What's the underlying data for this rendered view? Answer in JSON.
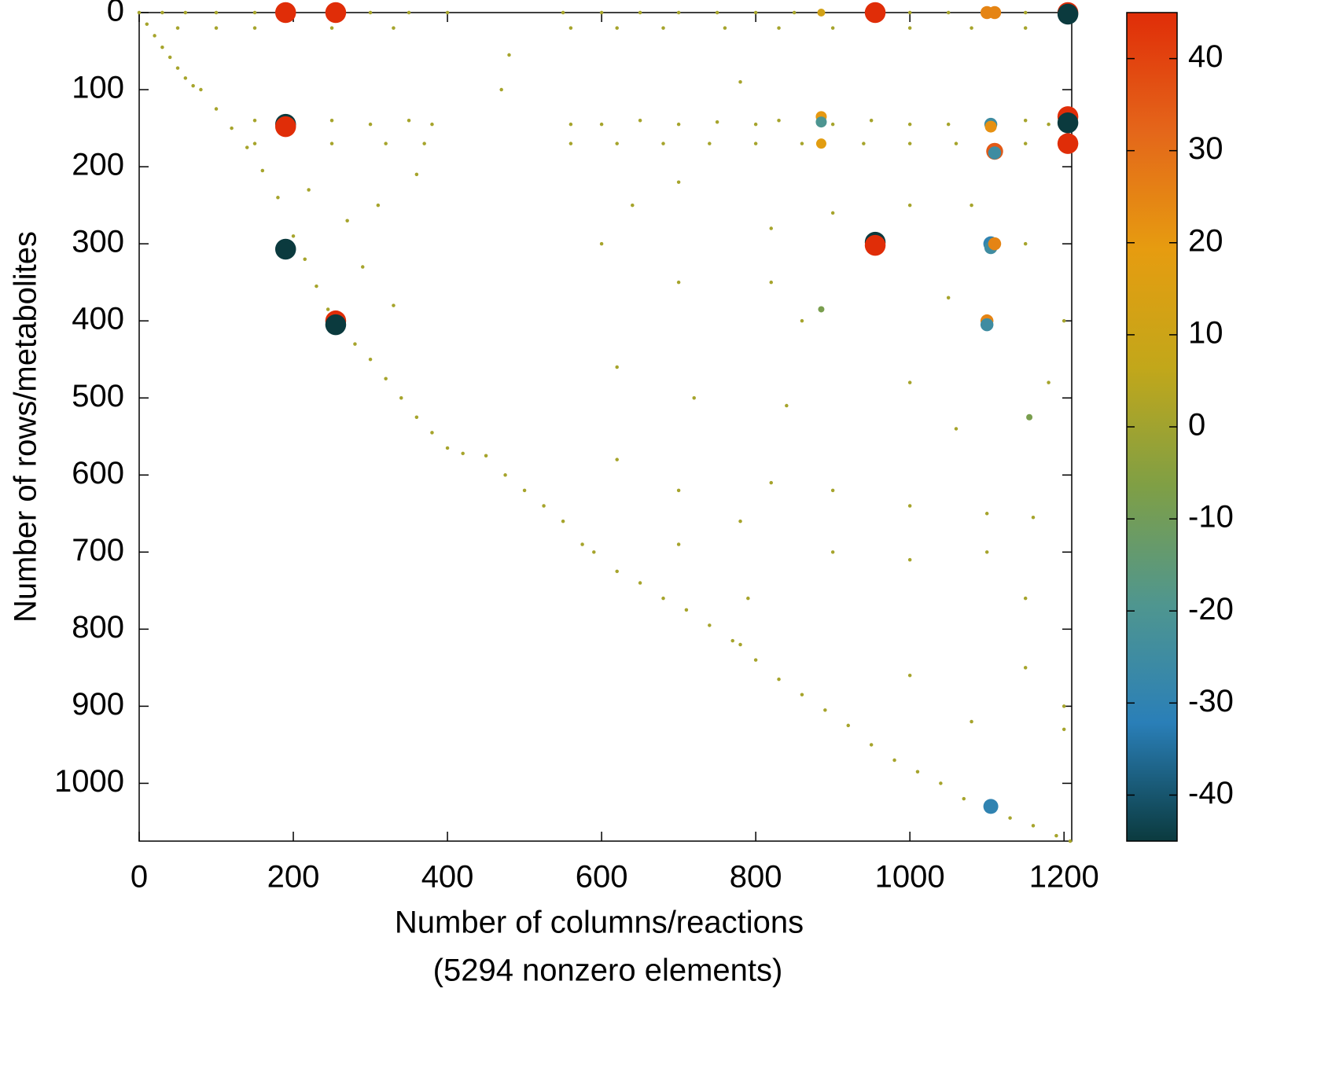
{
  "chart_data": {
    "type": "scatter",
    "xlabel": "Number of columns/reactions",
    "xlabel_note": "(5294 nonzero elements)",
    "ylabel": "Number of rows/metabolites",
    "xlim": [
      0,
      1210
    ],
    "ylim": [
      0,
      1075
    ],
    "y_inverted": true,
    "xticks": [
      0,
      200,
      400,
      600,
      800,
      1000,
      1200
    ],
    "yticks": [
      0,
      100,
      200,
      300,
      400,
      500,
      600,
      700,
      800,
      900,
      1000
    ],
    "clim": [
      -45,
      45
    ],
    "cticks": [
      -40,
      -30,
      -20,
      -10,
      0,
      10,
      20,
      30,
      40
    ],
    "colormap": [
      "#0b3a3e",
      "#2a7fb8",
      "#4f968f",
      "#7f9f45",
      "#c2a71a",
      "#e69c10",
      "#e4661a",
      "#e02d08"
    ],
    "series": [
      {
        "x": [
          0,
          10,
          20,
          30,
          40,
          50,
          60,
          70,
          80,
          100,
          120,
          140,
          160,
          180,
          200,
          215,
          230,
          245,
          260,
          280,
          300,
          320,
          340,
          360,
          380,
          400,
          420,
          450,
          475,
          500,
          525,
          550,
          575,
          590,
          620,
          650,
          680,
          710,
          740,
          770,
          800,
          830,
          860,
          890,
          920,
          950,
          980,
          1010,
          1040,
          1070,
          1100,
          1130,
          1160,
          1190,
          1208
        ],
        "y": [
          0,
          15,
          30,
          45,
          58,
          72,
          85,
          95,
          100,
          125,
          150,
          175,
          205,
          240,
          290,
          320,
          355,
          385,
          410,
          430,
          450,
          475,
          500,
          525,
          545,
          565,
          572,
          575,
          600,
          620,
          640,
          660,
          690,
          700,
          725,
          740,
          760,
          775,
          795,
          815,
          840,
          865,
          885,
          905,
          925,
          950,
          970,
          985,
          1000,
          1020,
          1030,
          1045,
          1055,
          1068,
          1075
        ],
        "values": [
          1,
          1,
          1,
          1,
          1,
          1,
          1,
          1,
          1,
          1,
          1,
          1,
          1,
          1,
          1,
          1,
          1,
          1,
          1,
          1,
          1,
          1,
          1,
          1,
          1,
          1,
          1,
          1,
          1,
          1,
          1,
          1,
          1,
          1,
          1,
          1,
          1,
          1,
          1,
          1,
          1,
          1,
          1,
          1,
          1,
          1,
          1,
          1,
          1,
          1,
          1,
          1,
          1,
          1,
          1
        ]
      },
      {
        "x": [
          30,
          60,
          100,
          150,
          300,
          350,
          400,
          550,
          600,
          650,
          700,
          750,
          800,
          850,
          1000,
          1050,
          1150
        ],
        "y": [
          0,
          0,
          0,
          0,
          0,
          0,
          0,
          0,
          0,
          0,
          0,
          0,
          0,
          0,
          0,
          0,
          0
        ],
        "values": [
          1,
          1,
          1,
          1,
          1,
          1,
          1,
          1,
          1,
          1,
          1,
          1,
          1,
          1,
          1,
          1,
          1
        ]
      },
      {
        "x": [
          50,
          100,
          150,
          250,
          330,
          560,
          620,
          680,
          760,
          830,
          900,
          1000,
          1080,
          1150
        ],
        "y": [
          20,
          20,
          20,
          20,
          20,
          20,
          20,
          20,
          20,
          20,
          20,
          20,
          20,
          20
        ],
        "values": [
          1,
          1,
          1,
          1,
          1,
          1,
          1,
          1,
          1,
          1,
          1,
          1,
          1,
          1
        ]
      },
      {
        "x": [
          150,
          200,
          250,
          300,
          350,
          380,
          560,
          600,
          650,
          700,
          750,
          800,
          830,
          900,
          950,
          1000,
          1050,
          1150,
          1180
        ],
        "y": [
          140,
          142,
          140,
          145,
          140,
          145,
          145,
          145,
          140,
          145,
          142,
          145,
          140,
          145,
          140,
          145,
          145,
          140,
          145
        ],
        "values": [
          1,
          1,
          1,
          1,
          1,
          1,
          1,
          1,
          1,
          1,
          1,
          1,
          1,
          1,
          1,
          1,
          1,
          1,
          1
        ]
      },
      {
        "x": [
          150,
          250,
          320,
          370,
          560,
          620,
          680,
          740,
          800,
          860,
          940,
          1000,
          1060,
          1150
        ],
        "y": [
          170,
          170,
          170,
          170,
          170,
          170,
          170,
          170,
          170,
          170,
          170,
          170,
          170,
          170
        ],
        "values": [
          1,
          1,
          1,
          1,
          1,
          1,
          1,
          1,
          1,
          1,
          1,
          1,
          1,
          1
        ]
      },
      {
        "x": [
          220,
          270,
          310,
          360,
          480,
          470,
          640,
          700,
          780,
          820,
          900,
          1000,
          1080,
          1150,
          290,
          330,
          600,
          700,
          820,
          860,
          1050,
          1200,
          620,
          720,
          840,
          1000,
          1180,
          1060,
          620,
          700,
          820,
          900,
          1000,
          1100,
          1160,
          780,
          790,
          780,
          700,
          900,
          1000,
          1100,
          1150,
          1000,
          1150,
          1200,
          1080,
          1200
        ],
        "y": [
          230,
          270,
          250,
          210,
          55,
          100,
          250,
          220,
          90,
          280,
          260,
          250,
          250,
          300,
          330,
          380,
          300,
          350,
          350,
          400,
          370,
          400,
          460,
          500,
          510,
          480,
          480,
          540,
          580,
          620,
          610,
          620,
          640,
          650,
          655,
          660,
          760,
          820,
          690,
          700,
          710,
          700,
          760,
          860,
          850,
          900,
          920,
          930
        ],
        "values": [
          1,
          1,
          1,
          1,
          1,
          1,
          1,
          1,
          1,
          1,
          1,
          1,
          1,
          1,
          1,
          1,
          1,
          1,
          1,
          1,
          1,
          1,
          1,
          1,
          1,
          1,
          1,
          1,
          1,
          1,
          1,
          1,
          1,
          1,
          1,
          1,
          1,
          1,
          1,
          1,
          1,
          1,
          1,
          1,
          1,
          1,
          1,
          1
        ]
      },
      {
        "x": [
          190,
          255,
          885,
          955,
          1100,
          1110,
          1205,
          1205,
          190,
          190,
          885,
          885,
          885,
          1105,
          1105,
          1205,
          1205,
          1205,
          1110,
          1110,
          190,
          955,
          955,
          1105,
          1105,
          1110,
          885,
          255,
          255,
          1100,
          1100,
          1155,
          1105
        ],
        "y": [
          0,
          0,
          0,
          0,
          0,
          0,
          0,
          2,
          145,
          148,
          135,
          142,
          170,
          145,
          148,
          135,
          143,
          170,
          180,
          182,
          307,
          298,
          302,
          300,
          305,
          300,
          385,
          400,
          405,
          400,
          405,
          525,
          1030
        ],
        "values": [
          45,
          45,
          12,
          45,
          25,
          25,
          45,
          -45,
          -45,
          45,
          20,
          -20,
          18,
          -25,
          22,
          45,
          -45,
          45,
          35,
          -25,
          -45,
          -45,
          45,
          -30,
          -25,
          25,
          -8,
          45,
          -45,
          25,
          -25,
          -8,
          -30
        ]
      }
    ]
  }
}
